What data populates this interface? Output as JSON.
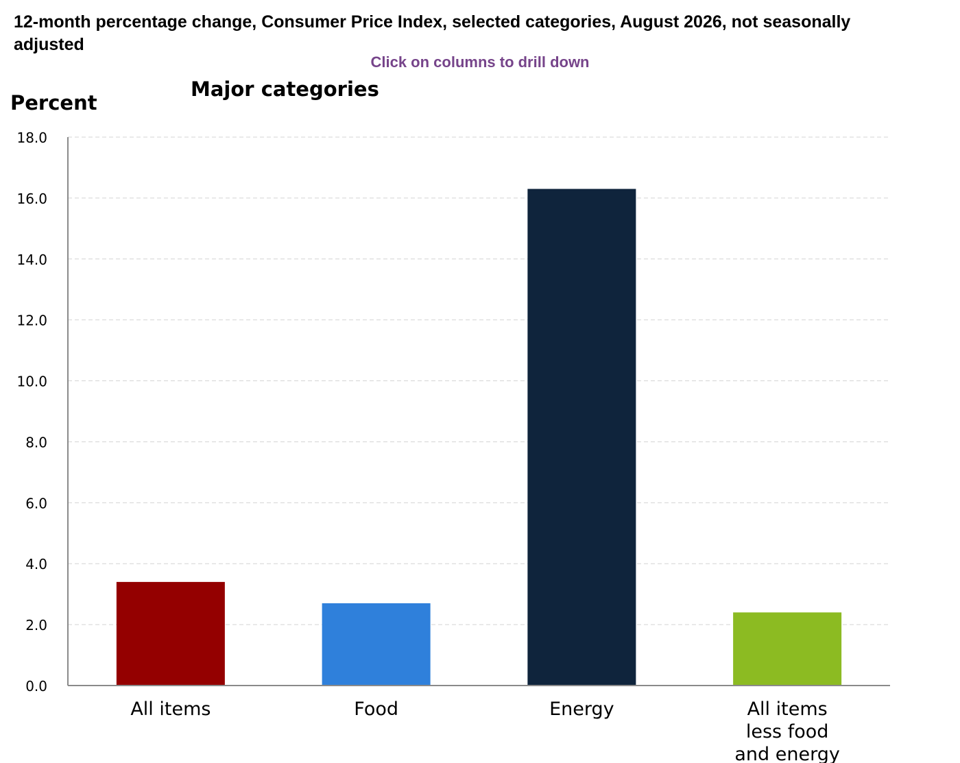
{
  "page": {
    "title": "12-month percentage change, Consumer Price Index, selected categories, August 2026, not seasonally adjusted",
    "hint": "Click on columns to drill down"
  },
  "chart_data": {
    "type": "bar",
    "title": "Major categories",
    "ylabel": "Percent",
    "xlabel": "",
    "ylim": [
      0,
      18
    ],
    "ytick_values": [
      0,
      2,
      4,
      6,
      8,
      10,
      12,
      14,
      16,
      18
    ],
    "ytick_labels": [
      "0.0",
      "2.0",
      "4.0",
      "6.0",
      "8.0",
      "10.0",
      "12.0",
      "14.0",
      "16.0",
      "18.0"
    ],
    "grid": true,
    "categories": [
      [
        "All items"
      ],
      [
        "Food"
      ],
      [
        "Energy"
      ],
      [
        "All items",
        "less food",
        "and energy"
      ]
    ],
    "values": [
      3.4,
      2.7,
      16.3,
      2.4
    ],
    "colors": [
      "#940000",
      "#2f80db",
      "#0f243c",
      "#8cbb22"
    ]
  }
}
